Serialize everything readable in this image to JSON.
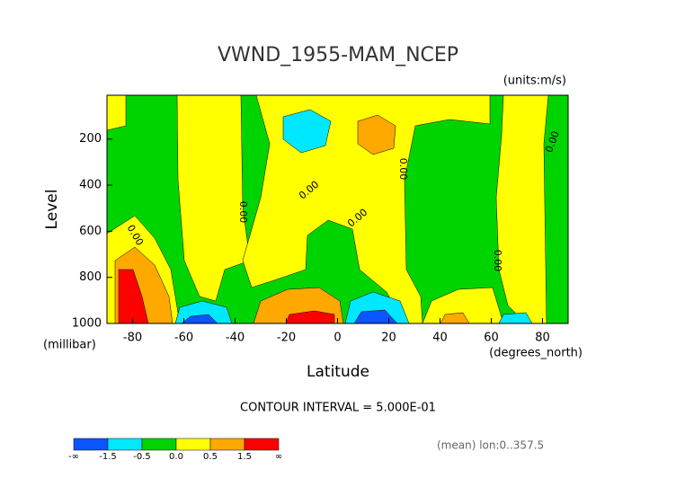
{
  "chart_data": {
    "type": "contour",
    "title": "VWND_1955-MAM_NCEP",
    "units": "(units:m/s)",
    "x_label": "Latitude",
    "x_units": "(degrees_north)",
    "y_label": "Level",
    "y_units": "(millibar)",
    "xlim": [
      -90,
      90
    ],
    "xticks": [
      -80,
      -60,
      -40,
      -20,
      0,
      20,
      40,
      60,
      80
    ],
    "ylim": [
      1000,
      10
    ],
    "yticks": [
      200,
      400,
      600,
      800,
      1000
    ],
    "contour_interval": "CONTOUR INTERVAL = 5.000E-01",
    "contour_label": "0.00",
    "footnote": "(mean) lon:0..357.5",
    "colorbar": {
      "labels": [
        "-∞",
        "-1.5",
        "-0.5",
        "0.0",
        "0.5",
        "1.5",
        "∞"
      ],
      "colors": [
        "#0a55ff",
        "#00e8ff",
        "#00d400",
        "#ffff00",
        "#ffa800",
        "#ff0000"
      ]
    }
  }
}
